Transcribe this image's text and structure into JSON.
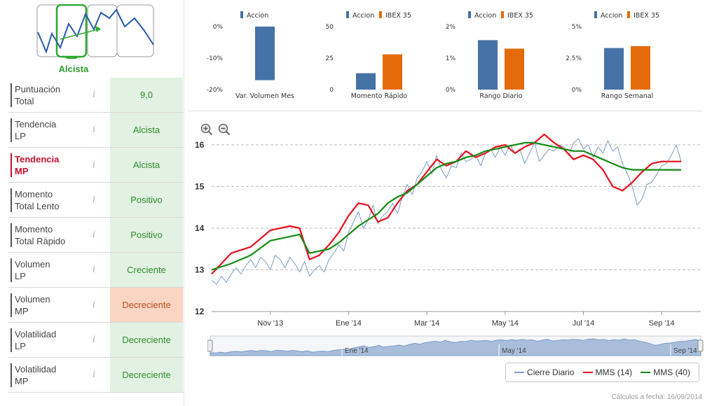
{
  "trend_widget": {
    "label": "Alcista",
    "colors": {
      "accent": "#2ea82e",
      "line": "#2b5aa7"
    }
  },
  "indicators": [
    {
      "label": "Puntuación\nTotal",
      "value": "9,0",
      "status": "positive",
      "highlight": false
    },
    {
      "label": "Tendencia\nLP",
      "value": "Alcista",
      "status": "positive",
      "highlight": false
    },
    {
      "label": "Tendencia\nMP",
      "value": "Alcista",
      "status": "positive",
      "highlight": true
    },
    {
      "label": "Momento\nTotal Lento",
      "value": "Positivo",
      "status": "positive",
      "highlight": false
    },
    {
      "label": "Momento\nTotal Rápido",
      "value": "Positivo",
      "status": "positive",
      "highlight": false
    },
    {
      "label": "Volumen\nLP",
      "value": "Creciente",
      "status": "positive",
      "highlight": false
    },
    {
      "label": "Volumen\nMP",
      "value": "Decreciente",
      "status": "negative",
      "highlight": false
    },
    {
      "label": "Volatilidad\nLP",
      "value": "Decreciente",
      "status": "positive",
      "highlight": false
    },
    {
      "label": "Volatilidad\nMP",
      "value": "Decreciente",
      "status": "positive",
      "highlight": false
    }
  ],
  "info_glyph": "i",
  "colors": {
    "accion": "#4572a7",
    "ibex": "#e56b0a",
    "cierre": "#7a9cc6",
    "mms14": "#e8101e",
    "mms40": "#138a13"
  },
  "chart_data": [
    {
      "type": "bar",
      "title": "Var. Volumen Mes",
      "series": [
        {
          "name": "Accion",
          "values": [
            -17
          ]
        }
      ],
      "ylim": [
        -20,
        0
      ],
      "yticks": [
        "0%",
        "-10%",
        "-20%"
      ]
    },
    {
      "type": "bar",
      "title": "Momento Rápido",
      "series": [
        {
          "name": "Accion",
          "values": [
            13
          ]
        },
        {
          "name": "IBEX 35",
          "values": [
            28
          ]
        }
      ],
      "ylim": [
        0,
        50
      ],
      "yticks": [
        "50",
        "25",
        "0"
      ]
    },
    {
      "type": "bar",
      "title": "Rango Diario",
      "series": [
        {
          "name": "Accion",
          "values": [
            1.57
          ]
        },
        {
          "name": "IBEX 35",
          "values": [
            1.3
          ]
        }
      ],
      "ylim": [
        0,
        2
      ],
      "yticks": [
        "2%",
        "1%",
        "0%"
      ]
    },
    {
      "type": "bar",
      "title": "Rango Semanal",
      "series": [
        {
          "name": "Accion",
          "values": [
            3.3
          ]
        },
        {
          "name": "IBEX 35",
          "values": [
            3.45
          ]
        }
      ],
      "ylim": [
        0,
        5
      ],
      "yticks": [
        "5%",
        "2.5%",
        "0%"
      ]
    },
    {
      "type": "line",
      "title": "",
      "ylim": [
        12,
        16.2
      ],
      "yticks": [
        12,
        13,
        14,
        15,
        16
      ],
      "xlim": [
        0,
        100
      ],
      "xticks": [
        {
          "label": "Nov '13",
          "x": 12
        },
        {
          "label": "Ene '14",
          "x": 28
        },
        {
          "label": "Mar '14",
          "x": 44
        },
        {
          "label": "May '14",
          "x": 60
        },
        {
          "label": "Jul '14",
          "x": 76
        },
        {
          "label": "Sep '14",
          "x": 92
        }
      ],
      "series": [
        {
          "name": "Cierre Diario",
          "x": [
            0,
            1,
            2,
            3,
            4,
            5,
            6,
            7,
            8,
            9,
            10,
            11,
            12,
            13,
            14,
            15,
            16,
            17,
            18,
            19,
            20,
            21,
            22,
            23,
            24,
            25,
            26,
            27,
            28,
            29,
            30,
            31,
            32,
            33,
            34,
            35,
            36,
            37,
            38,
            39,
            40,
            41,
            42,
            43,
            44,
            45,
            46,
            47,
            48,
            49,
            50,
            51,
            52,
            53,
            54,
            55,
            56,
            57,
            58,
            59,
            60,
            61,
            62,
            63,
            64,
            65,
            66,
            67,
            68,
            69,
            70,
            71,
            72,
            73,
            74,
            75,
            76,
            77,
            78,
            79,
            80,
            81,
            82,
            83,
            84,
            85,
            86,
            87,
            88,
            89,
            90,
            91,
            92,
            93,
            94,
            95,
            96
          ],
          "values": [
            12.75,
            12.65,
            12.85,
            12.7,
            12.9,
            13.05,
            12.9,
            13.1,
            13.25,
            13.05,
            13.3,
            13.2,
            13.0,
            13.35,
            13.25,
            13.05,
            13.3,
            13.15,
            12.95,
            13.2,
            12.85,
            13.0,
            13.1,
            12.95,
            13.25,
            13.4,
            13.6,
            13.45,
            13.9,
            14.15,
            14.4,
            14.0,
            14.2,
            14.55,
            14.1,
            14.3,
            14.4,
            14.6,
            14.35,
            14.75,
            15.05,
            14.8,
            15.2,
            15.35,
            15.6,
            15.3,
            15.75,
            15.4,
            15.2,
            15.5,
            15.45,
            15.8,
            15.6,
            15.65,
            15.75,
            15.5,
            15.8,
            15.9,
            15.7,
            15.95,
            15.75,
            16.0,
            15.8,
            15.9,
            15.55,
            15.8,
            16.05,
            15.6,
            15.75,
            15.9,
            15.85,
            16.0,
            15.95,
            15.75,
            16.05,
            16.15,
            15.9,
            16.0,
            15.7,
            15.95,
            15.8,
            16.1,
            15.85,
            15.95,
            15.55,
            15.3,
            15.0,
            14.55,
            14.7,
            15.05,
            15.1,
            15.3,
            15.5,
            15.55,
            15.75,
            16.0,
            15.6
          ],
          "color_key": "cierre"
        },
        {
          "name": "MMS (14)",
          "x": [
            0,
            4,
            8,
            12,
            16,
            18,
            20,
            22,
            24,
            26,
            28,
            30,
            32,
            34,
            36,
            38,
            40,
            42,
            44,
            46,
            48,
            50,
            52,
            54,
            56,
            58,
            60,
            62,
            64,
            66,
            68,
            70,
            72,
            74,
            76,
            78,
            80,
            82,
            84,
            86,
            88,
            90,
            92,
            94,
            96
          ],
          "values": [
            12.9,
            13.4,
            13.55,
            13.95,
            14.05,
            14.0,
            13.25,
            13.35,
            13.6,
            13.9,
            14.3,
            14.6,
            14.55,
            14.15,
            14.25,
            14.6,
            14.9,
            15.05,
            15.35,
            15.65,
            15.5,
            15.6,
            15.85,
            15.7,
            15.8,
            15.95,
            16.0,
            15.8,
            15.95,
            16.05,
            16.25,
            16.05,
            15.9,
            15.65,
            15.75,
            15.65,
            15.4,
            15.0,
            14.9,
            15.1,
            15.35,
            15.55,
            15.6,
            15.6,
            15.6
          ],
          "color_key": "mms14"
        },
        {
          "name": "MMS (40)",
          "x": [
            0,
            4,
            8,
            12,
            16,
            18,
            20,
            22,
            24,
            26,
            28,
            30,
            32,
            34,
            36,
            38,
            40,
            42,
            44,
            46,
            48,
            50,
            52,
            54,
            56,
            58,
            60,
            62,
            64,
            66,
            68,
            70,
            72,
            74,
            76,
            78,
            80,
            82,
            84,
            86,
            88,
            90,
            92,
            94,
            96
          ],
          "values": [
            13.0,
            13.15,
            13.35,
            13.7,
            13.8,
            13.85,
            13.4,
            13.45,
            13.5,
            13.65,
            13.85,
            14.05,
            14.2,
            14.35,
            14.6,
            14.75,
            14.85,
            15.05,
            15.25,
            15.45,
            15.55,
            15.6,
            15.7,
            15.75,
            15.85,
            15.9,
            15.95,
            16.0,
            16.05,
            16.05,
            16.0,
            15.95,
            15.9,
            15.85,
            15.85,
            15.75,
            15.65,
            15.55,
            15.45,
            15.4,
            15.4,
            15.4,
            15.4,
            15.4,
            15.4
          ],
          "color_key": "mms40"
        }
      ]
    }
  ],
  "navigator": {
    "labels": [
      {
        "label": "Ene '14",
        "x": 30
      },
      {
        "label": "May '14",
        "x": 62
      },
      {
        "label": "Sep '14",
        "x": 97
      }
    ]
  },
  "legend": [
    {
      "label": "Cierre Diario",
      "color_key": "cierre"
    },
    {
      "label": "MMS (14)",
      "color_key": "mms14"
    },
    {
      "label": "MMS (40)",
      "color_key": "mms40"
    }
  ],
  "footer": {
    "date_text": "Cálculos a fecha: 16/09/2014"
  },
  "zoom": {
    "in_icon": "zoom-in-icon",
    "out_icon": "zoom-out-icon"
  }
}
